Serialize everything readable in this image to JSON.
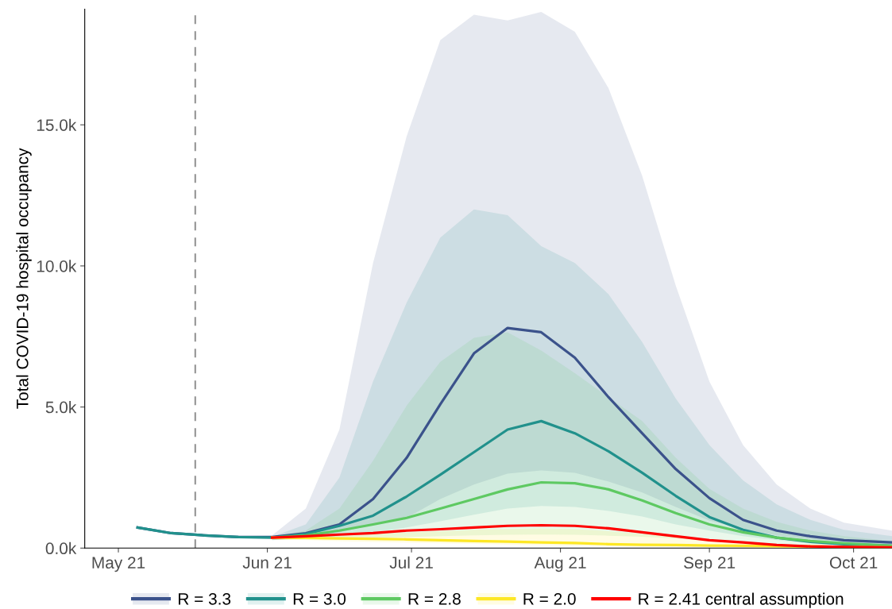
{
  "chart_data": {
    "type": "line",
    "ylabel": "Total COVID-19 hospital occupancy",
    "x": [
      "2021-05-05",
      "2021-05-12",
      "2021-05-19",
      "2021-05-26",
      "2021-06-02",
      "2021-06-09",
      "2021-06-16",
      "2021-06-23",
      "2021-06-30",
      "2021-07-07",
      "2021-07-14",
      "2021-07-21",
      "2021-07-28",
      "2021-08-04",
      "2021-08-11",
      "2021-08-18",
      "2021-08-25",
      "2021-09-01",
      "2021-09-08",
      "2021-09-15",
      "2021-09-22",
      "2021-09-29",
      "2021-10-09"
    ],
    "xlim": [
      "2021-04-24",
      "2021-10-09"
    ],
    "xticks": [
      {
        "value": "2021-05-01",
        "label": "May 21"
      },
      {
        "value": "2021-06-01",
        "label": "Jun 21"
      },
      {
        "value": "2021-07-01",
        "label": "Jul 21"
      },
      {
        "value": "2021-08-01",
        "label": "Aug 21"
      },
      {
        "value": "2021-09-01",
        "label": "Sep 21"
      },
      {
        "value": "2021-10-01",
        "label": "Oct 21"
      }
    ],
    "ylim": [
      0,
      19100
    ],
    "yticks": [
      {
        "value": 0,
        "label": "0.0k"
      },
      {
        "value": 5000,
        "label": "5.0k"
      },
      {
        "value": 10000,
        "label": "10.0k"
      },
      {
        "value": 15000,
        "label": "15.0k"
      }
    ],
    "grid": false,
    "legend": "bottom",
    "marker": "none",
    "line_style": "solid",
    "ref_lines": [
      {
        "axis": "x",
        "value": "2021-05-17",
        "color": "#999999",
        "line_style": "dashed"
      }
    ],
    "series": [
      {
        "name": "R = 3.3",
        "color": "#3b528b",
        "values": [
          730,
          530,
          450,
          390,
          390,
          530,
          840,
          1740,
          3200,
          5100,
          6900,
          7800,
          7650,
          6750,
          5350,
          4070,
          2800,
          1770,
          1000,
          620,
          420,
          280,
          200
        ],
        "lower": [
          null,
          null,
          null,
          null,
          280,
          340,
          560,
          840,
          1070,
          1740,
          2250,
          2640,
          2750,
          2670,
          2360,
          1970,
          1460,
          980,
          670,
          450,
          310,
          220,
          110
        ],
        "upper": [
          null,
          null,
          null,
          null,
          450,
          1400,
          4200,
          10100,
          14600,
          18000,
          18900,
          18700,
          19000,
          18300,
          16300,
          13200,
          9300,
          5900,
          3650,
          2250,
          1400,
          900,
          620
        ]
      },
      {
        "name": "R = 3.0",
        "color": "#21918c",
        "values": [
          730,
          530,
          450,
          390,
          370,
          500,
          790,
          1150,
          1830,
          2600,
          3400,
          4200,
          4500,
          4070,
          3430,
          2670,
          1850,
          1100,
          650,
          370,
          220,
          140,
          80
        ],
        "lower": [
          null,
          null,
          null,
          null,
          280,
          350,
          420,
          560,
          730,
          950,
          1180,
          1400,
          1490,
          1460,
          1320,
          1120,
          840,
          620,
          420,
          280,
          170,
          110,
          60
        ],
        "upper": [
          null,
          null,
          null,
          null,
          400,
          840,
          2500,
          5900,
          8700,
          11000,
          12000,
          11800,
          10700,
          10100,
          9000,
          7300,
          5300,
          3650,
          2400,
          1550,
          1000,
          650,
          420
        ]
      },
      {
        "name": "R = 2.8",
        "color": "#5ec962",
        "values": [
          null,
          null,
          null,
          null,
          370,
          450,
          620,
          840,
          1070,
          1400,
          1740,
          2080,
          2330,
          2300,
          2080,
          1690,
          1240,
          840,
          560,
          370,
          250,
          170,
          80
        ],
        "lower": [
          null,
          null,
          null,
          null,
          300,
          310,
          330,
          360,
          390,
          420,
          450,
          470,
          480,
          470,
          440,
          400,
          340,
          270,
          200,
          140,
          100,
          70,
          40
        ],
        "upper": [
          null,
          null,
          null,
          null,
          400,
          620,
          1400,
          3100,
          5050,
          6600,
          7450,
          7650,
          7000,
          6200,
          5350,
          4500,
          3200,
          2100,
          1400,
          930,
          620,
          420,
          250
        ]
      },
      {
        "name": "R = 2.0",
        "color": "#fde725",
        "values": [
          null,
          null,
          null,
          null,
          370,
          360,
          340,
          330,
          310,
          280,
          250,
          230,
          200,
          180,
          140,
          120,
          110,
          90,
          80,
          70,
          60,
          40,
          30
        ],
        "lower": [
          null,
          null,
          null,
          null,
          300,
          280,
          250,
          220,
          200,
          170,
          150,
          120,
          100,
          80,
          70,
          50,
          40,
          30,
          25,
          20,
          15,
          10,
          5
        ],
        "upper": [
          null,
          null,
          null,
          null,
          400,
          420,
          450,
          500,
          550,
          600,
          650,
          680,
          700,
          670,
          600,
          500,
          400,
          300,
          200,
          150,
          100,
          70,
          50
        ]
      },
      {
        "name": "R = 2.41 central assumption",
        "color": "#ff0000",
        "values": [
          null,
          null,
          null,
          null,
          370,
          420,
          480,
          530,
          620,
          670,
          730,
          790,
          810,
          790,
          700,
          560,
          420,
          280,
          200,
          110,
          60,
          40,
          30
        ]
      }
    ]
  }
}
